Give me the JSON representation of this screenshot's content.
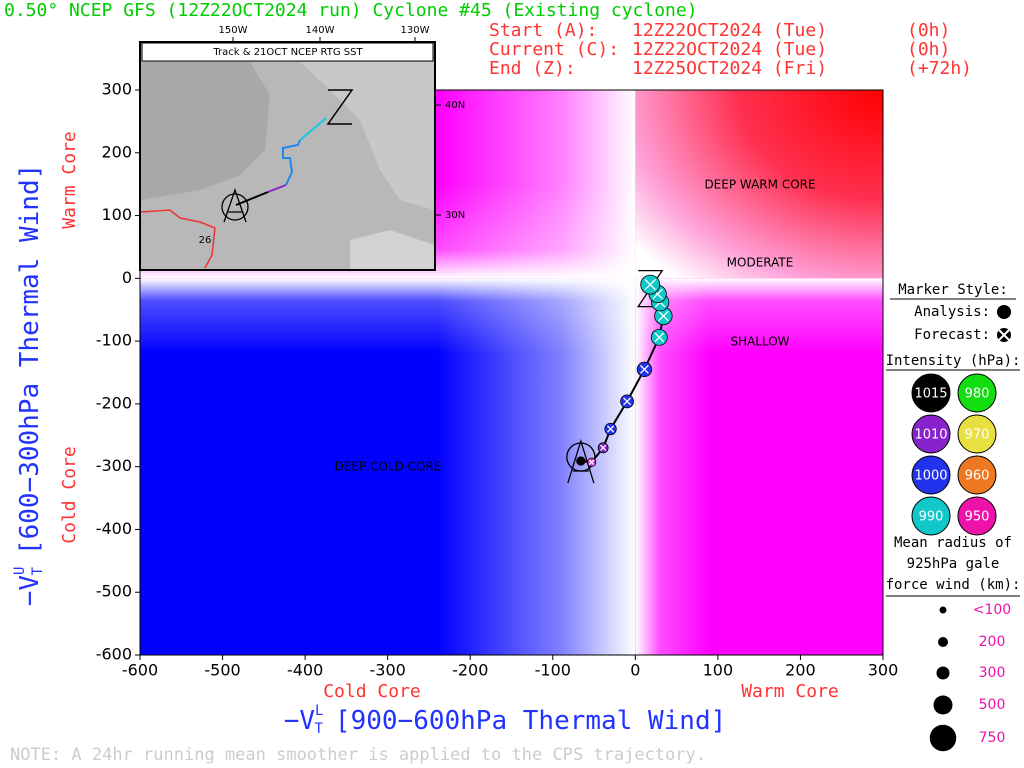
{
  "chart_data": {
    "type": "line",
    "title": "0.50° NCEP GFS (12Z22OCT2024 run) Cyclone #45 (Existing cyclone)",
    "run_info": [
      {
        "label": "Start (A):",
        "date": "12Z22OCT2024 (Tue)",
        "hour": "(0h)"
      },
      {
        "label": "Current (C):",
        "date": "12Z22OCT2024 (Tue)",
        "hour": "(0h)"
      },
      {
        "label": "End (Z):",
        "date": "12Z25OCT2024 (Fri)",
        "hour": "(+72h)"
      }
    ],
    "xlabel": {
      "main": "−V",
      "sub": "T",
      "sup": "L",
      "rest": "[900−600hPa Thermal Wind]"
    },
    "ylabel": {
      "main": "−V",
      "sub": "T",
      "sup": "U",
      "rest": "[600−300hPa Thermal Wind]"
    },
    "x_side_labels": [
      "Cold Core",
      "Warm Core"
    ],
    "y_side_labels": [
      "Cold Core",
      "Warm Core"
    ],
    "regions": [
      "DEEP WARM CORE",
      "MODERATE",
      "SHALLOW",
      "DEEP COLD CORE"
    ],
    "note": "NOTE:  A 24hr running mean smoother is applied to the CPS trajectory.",
    "xlim": [
      -600,
      300
    ],
    "xticks": [
      -600,
      -500,
      -400,
      -300,
      -200,
      -100,
      0,
      100,
      200,
      300
    ],
    "ylim": [
      -600,
      300
    ],
    "yticks": [
      -600,
      -500,
      -400,
      -300,
      -200,
      -100,
      0,
      100,
      200,
      300
    ],
    "x": [
      -66,
      -53,
      -39,
      -30,
      -10,
      11,
      29,
      34,
      30,
      27,
      18
    ],
    "values": [
      -291,
      -293,
      -270,
      -240,
      -196,
      -145,
      -94,
      -60,
      -38,
      -25,
      -10
    ],
    "colors": [
      "#000000",
      "#cc33cc",
      "#8822cc",
      "#2233ee",
      "#2233ee",
      "#2233ee",
      "#11c8c8",
      "#11c8c8",
      "#11c8c8",
      "#11c8c8",
      "#11c8c8"
    ],
    "forecast": [
      false,
      true,
      true,
      true,
      true,
      true,
      true,
      true,
      true,
      true,
      true
    ],
    "gale_radius_km": [
      150,
      150,
      200,
      250,
      300,
      350,
      400,
      450,
      450,
      450,
      500
    ],
    "inset": {
      "title": "Track & 21OCT NCEP RTG SST",
      "lon_labels": [
        "150W",
        "140W",
        "130W"
      ],
      "lat_labels": [
        "40N",
        "30N"
      ],
      "contour_label": "26"
    },
    "legend": {
      "marker_title": "Marker Style:",
      "analysis": "Analysis:",
      "forecast": "Forecast:",
      "intensity_title": "Intensity (hPa):",
      "intensity": [
        {
          "value": 1015,
          "color": "#000000"
        },
        {
          "value": 980,
          "color": "#11dd11"
        },
        {
          "value": 1010,
          "color": "#8822cc"
        },
        {
          "value": 970,
          "color": "#e8e040"
        },
        {
          "value": 1000,
          "color": "#2233ee"
        },
        {
          "value": 960,
          "color": "#ee7722"
        },
        {
          "value": 990,
          "color": "#11c8c8"
        },
        {
          "value": 950,
          "color": "#ee11aa"
        }
      ],
      "radius_title": [
        "Mean radius of",
        "925hPa gale",
        "force wind (km):"
      ],
      "radius": [
        {
          "value": 100,
          "label": "<100"
        },
        200,
        300,
        500,
        750
      ]
    }
  }
}
